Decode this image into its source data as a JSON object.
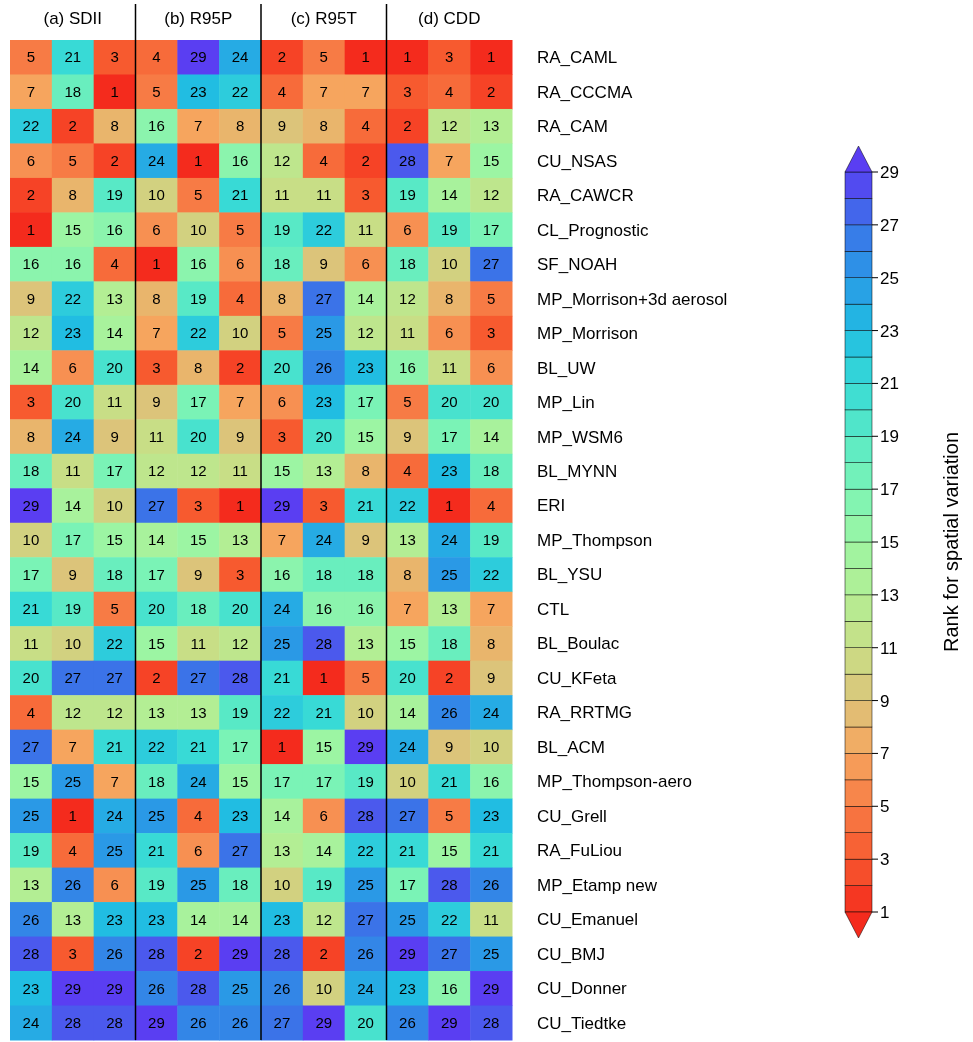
{
  "chart_data": {
    "type": "heatmap",
    "categories": [
      null,
      "(a) SDII",
      null,
      null,
      "(b) R95P",
      null,
      null,
      "(c) R95T",
      null,
      null,
      "(d) CDD",
      null
    ],
    "y_categories": [
      "RA_CAML",
      "RA_CCCMA",
      "RA_CAM",
      "CU_NSAS",
      "RA_CAWCR",
      "CL_Prognostic",
      "SF_NOAH",
      "MP_Morrison+3d aerosol",
      "MP_Morrison",
      "BL_UW",
      "MP_Lin",
      "MP_WSM6",
      "BL_MYNN",
      "ERI",
      "MP_Thompson",
      "BL_YSU",
      "CTL",
      "BL_Boulac",
      "CU_KFeta",
      "RA_RRTMG",
      "BL_ACM",
      "MP_Thompson-aero",
      "CU_Grell",
      "RA_FuLiou",
      "MP_Etamp new",
      "CU_Emanuel",
      "CU_BMJ",
      "CU_Donner",
      "CU_Tiedtke"
    ],
    "cells": [
      [
        5,
        21,
        3,
        4,
        29,
        24,
        2,
        5,
        1,
        1,
        3,
        1
      ],
      [
        7,
        18,
        1,
        5,
        23,
        22,
        4,
        7,
        7,
        3,
        4,
        2
      ],
      [
        22,
        2,
        8,
        16,
        7,
        8,
        9,
        8,
        4,
        2,
        12,
        13
      ],
      [
        6,
        5,
        2,
        24,
        1,
        16,
        12,
        4,
        2,
        28,
        7,
        15
      ],
      [
        2,
        8,
        19,
        10,
        5,
        21,
        11,
        11,
        3,
        19,
        14,
        12
      ],
      [
        1,
        15,
        16,
        6,
        10,
        5,
        19,
        22,
        11,
        6,
        19,
        17
      ],
      [
        16,
        16,
        4,
        1,
        16,
        6,
        18,
        9,
        6,
        18,
        10,
        27
      ],
      [
        9,
        22,
        13,
        8,
        19,
        4,
        8,
        27,
        14,
        12,
        8,
        5
      ],
      [
        12,
        23,
        14,
        7,
        22,
        10,
        5,
        25,
        12,
        11,
        6,
        3
      ],
      [
        14,
        6,
        20,
        3,
        8,
        2,
        20,
        26,
        23,
        16,
        11,
        6
      ],
      [
        3,
        20,
        11,
        9,
        17,
        7,
        6,
        23,
        17,
        5,
        20,
        20
      ],
      [
        8,
        24,
        9,
        11,
        20,
        9,
        3,
        20,
        15,
        9,
        17,
        14
      ],
      [
        18,
        11,
        17,
        12,
        12,
        11,
        15,
        13,
        8,
        4,
        23,
        18
      ],
      [
        29,
        14,
        10,
        27,
        3,
        1,
        29,
        3,
        21,
        22,
        1,
        4
      ],
      [
        10,
        17,
        15,
        14,
        15,
        13,
        7,
        24,
        9,
        13,
        24,
        19
      ],
      [
        17,
        9,
        18,
        17,
        9,
        3,
        16,
        18,
        18,
        8,
        25,
        22
      ],
      [
        21,
        19,
        5,
        20,
        18,
        20,
        24,
        16,
        16,
        7,
        13,
        7
      ],
      [
        11,
        10,
        22,
        15,
        11,
        12,
        25,
        28,
        13,
        15,
        18,
        8
      ],
      [
        20,
        27,
        27,
        2,
        27,
        28,
        21,
        1,
        5,
        20,
        2,
        9
      ],
      [
        4,
        12,
        12,
        13,
        13,
        19,
        22,
        21,
        10,
        14,
        26,
        24
      ],
      [
        27,
        7,
        21,
        22,
        21,
        17,
        1,
        15,
        29,
        24,
        9,
        10
      ],
      [
        15,
        25,
        7,
        18,
        24,
        15,
        17,
        17,
        19,
        10,
        21,
        16
      ],
      [
        25,
        1,
        24,
        25,
        4,
        23,
        14,
        6,
        28,
        27,
        5,
        23
      ],
      [
        19,
        4,
        25,
        21,
        6,
        27,
        13,
        14,
        22,
        21,
        15,
        21
      ],
      [
        13,
        26,
        6,
        19,
        25,
        18,
        10,
        19,
        25,
        17,
        28,
        26
      ],
      [
        26,
        13,
        23,
        23,
        14,
        14,
        23,
        12,
        27,
        25,
        22,
        11
      ],
      [
        28,
        3,
        26,
        28,
        2,
        29,
        28,
        2,
        26,
        29,
        27,
        25
      ],
      [
        23,
        29,
        29,
        26,
        28,
        25,
        26,
        10,
        24,
        23,
        16,
        29
      ],
      [
        24,
        28,
        28,
        29,
        26,
        26,
        27,
        29,
        20,
        26,
        29,
        28
      ]
    ],
    "data_labels": true,
    "clabel": "Rank for spatial variation",
    "clim": [
      1,
      29
    ],
    "cticks": [
      1,
      3,
      5,
      7,
      9,
      11,
      13,
      15,
      17,
      19,
      21,
      23,
      25,
      27,
      29
    ]
  }
}
